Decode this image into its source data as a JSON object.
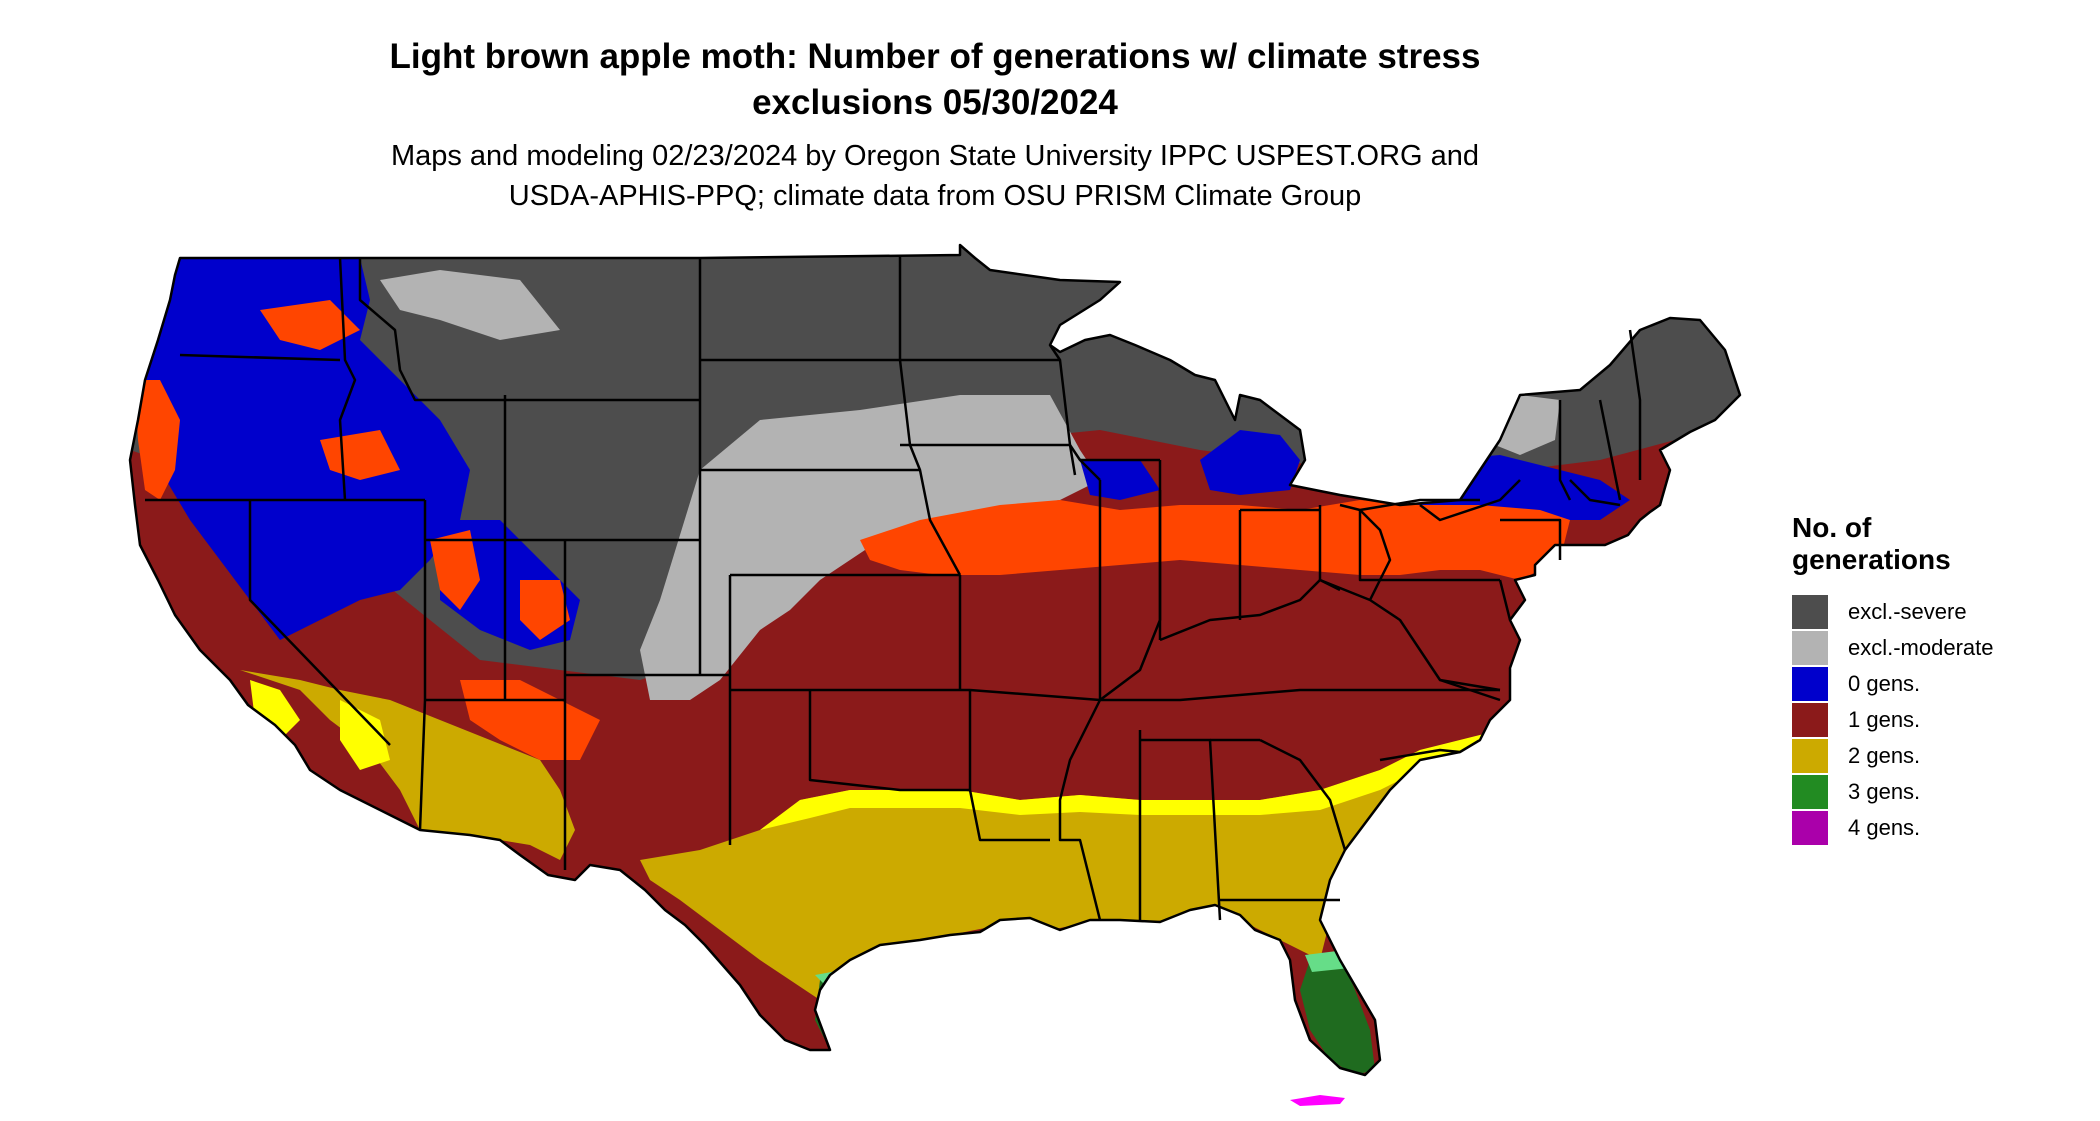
{
  "title": {
    "line1": "Light brown apple moth: Number of generations w/ climate stress",
    "line2": "exclusions 05/30/2024"
  },
  "subtitle": {
    "line1": "Maps and modeling 02/23/2024 by Oregon State University IPPC USPEST.ORG and",
    "line2": "USDA-APHIS-PPQ; climate data from OSU PRISM Climate Group"
  },
  "legend": {
    "title_line1": "No. of",
    "title_line2": "generations",
    "items": [
      {
        "label": "excl.-severe",
        "color": "#4d4d4d"
      },
      {
        "label": "excl.-moderate",
        "color": "#b3b3b3"
      },
      {
        "label": "0 gens.",
        "color": "#0000cc"
      },
      {
        "label": "1 gens.",
        "color": "#8b1a1a"
      },
      {
        "label": "2 gens.",
        "color": "#ccaa00"
      },
      {
        "label": "3 gens.",
        "color": "#228b22"
      },
      {
        "label": "4 gens.",
        "color": "#aa00aa"
      }
    ]
  },
  "map": {
    "region": "contiguous United States",
    "colors": {
      "excl_severe": "#4d4d4d",
      "excl_moderate": "#b3b3b3",
      "gens_0": "#0000cc",
      "gens_1": "#8b1a1a",
      "gens_1_light": "#ff4500",
      "gens_2": "#ccaa00",
      "gens_2_light": "#ffff00",
      "gens_3": "#1f6b1f",
      "gens_3_light": "#66dd88",
      "gens_4": "#ff00ff",
      "state_border": "#000000"
    }
  }
}
